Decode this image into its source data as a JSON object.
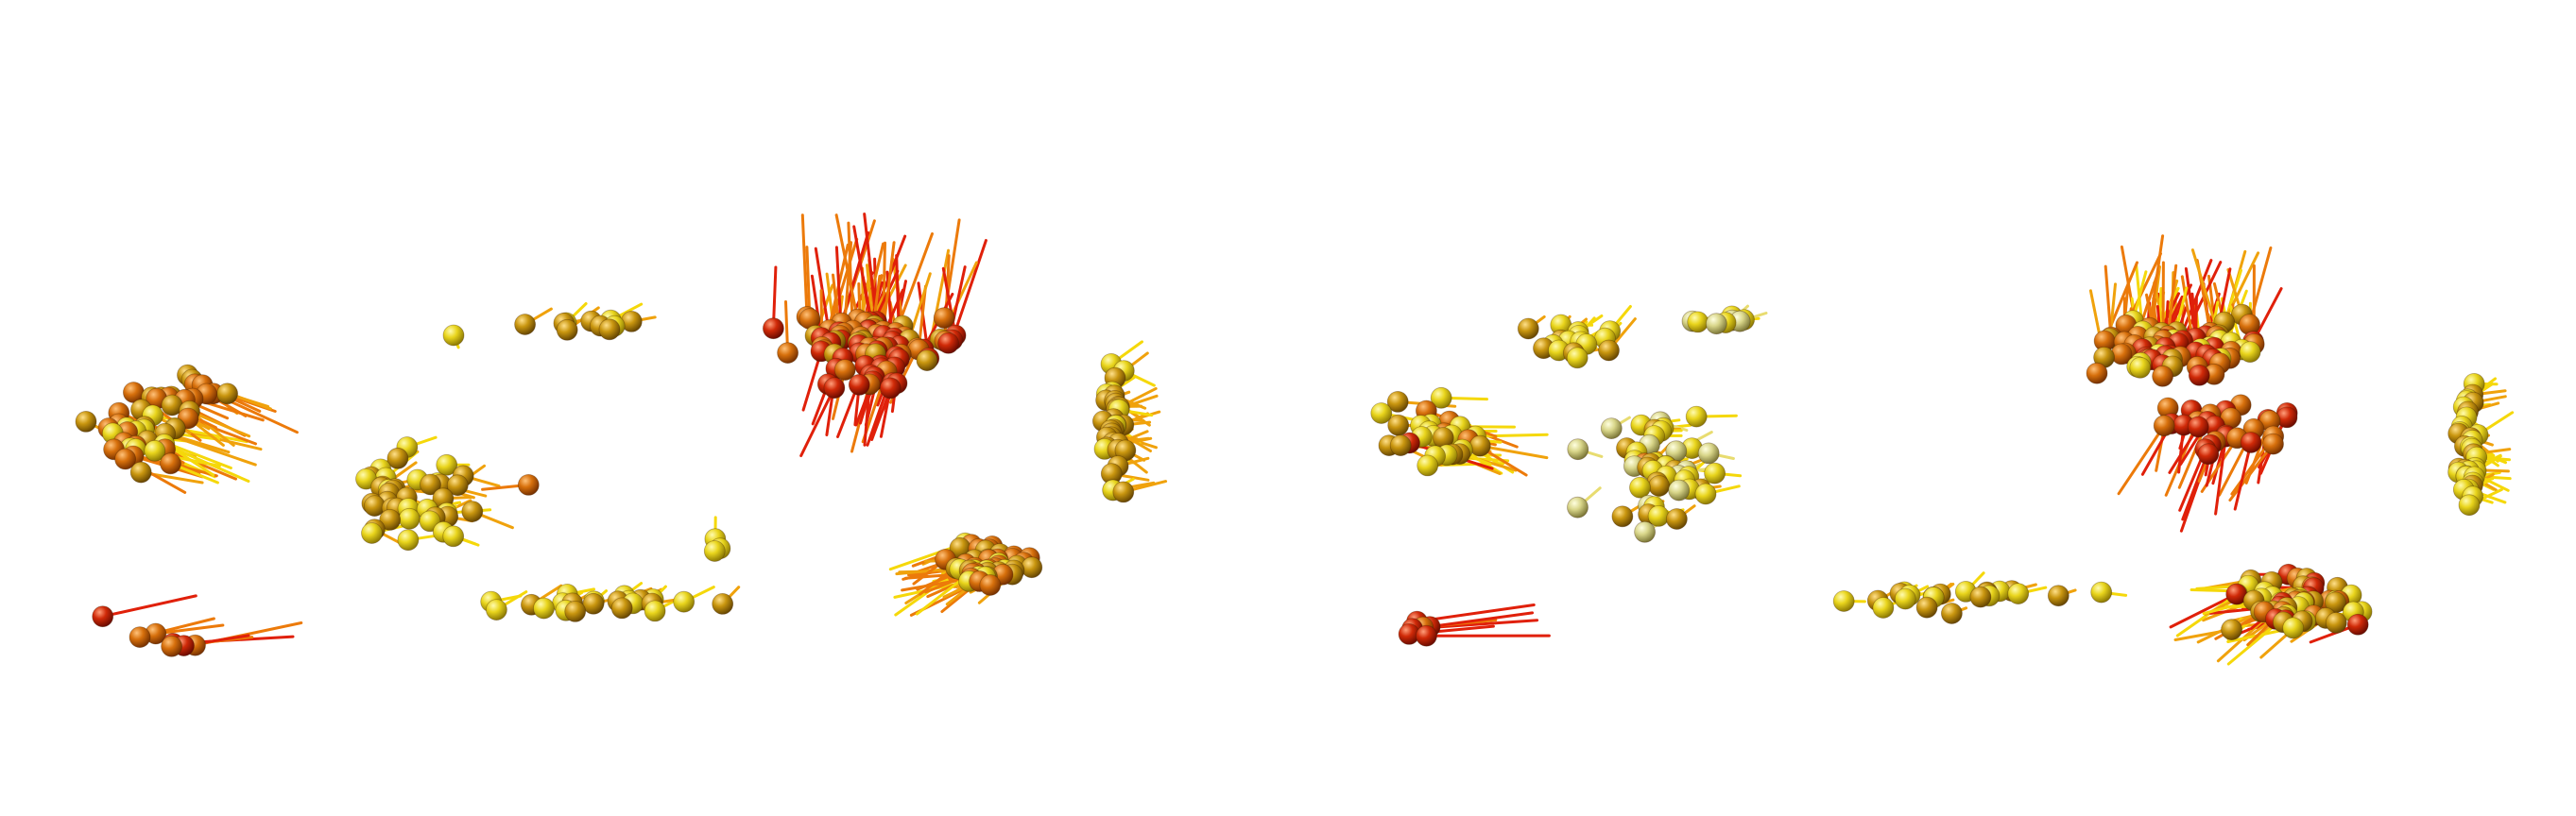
{
  "figure": {
    "panels": [
      {
        "id": "left",
        "model": "vector-field-spheres",
        "colors": {
          "low": "#f2e320",
          "mid": "#e08a12",
          "high": "#d42a08",
          "background": "#ffffff"
        }
      },
      {
        "id": "right",
        "model": "vector-field-spheres",
        "colors": {
          "low": "#f2e320",
          "mid": "#e08a12",
          "high": "#d42a08",
          "background": "#ffffff"
        }
      }
    ]
  }
}
